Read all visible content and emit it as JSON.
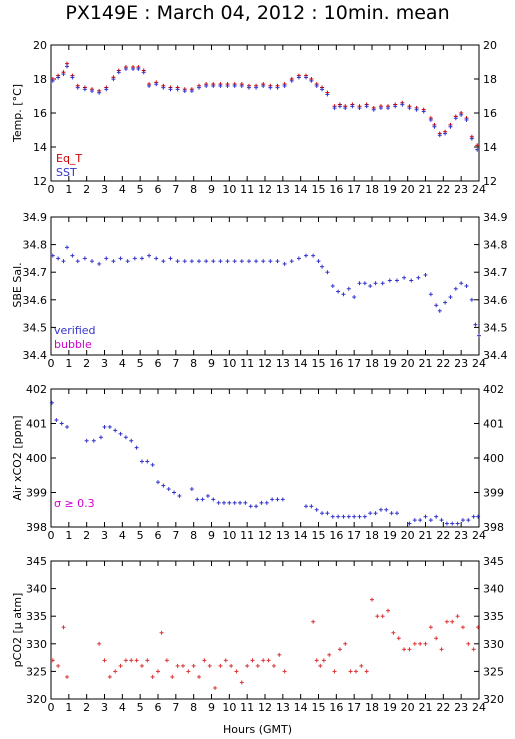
{
  "title": "PX149E : March 04, 2012 : 10min. mean",
  "xlabel": "Hours (GMT)",
  "colors": {
    "eq_t": "#cc0000",
    "sst": "#3333cc",
    "verified": "#3333cc",
    "bubble": "#cc00cc",
    "sigma": "#cc00cc",
    "pco2": "#dd3333"
  },
  "chart_data": [
    {
      "type": "scatter",
      "ylabel": "Temp. [°C]",
      "xlim": [
        0,
        24
      ],
      "ylim": [
        12,
        20
      ],
      "yticks": [
        12,
        14,
        16,
        18,
        20
      ],
      "xticks": [
        0,
        1,
        2,
        3,
        4,
        5,
        6,
        7,
        8,
        9,
        10,
        11,
        12,
        13,
        14,
        15,
        16,
        17,
        18,
        19,
        20,
        21,
        22,
        23,
        24
      ],
      "legend": [
        "Eq_T",
        "SST"
      ],
      "series": [
        {
          "name": "Eq_T",
          "x": [
            0.1,
            0.4,
            0.7,
            0.9,
            1.2,
            1.5,
            1.9,
            2.3,
            2.7,
            3.1,
            3.5,
            3.8,
            4.2,
            4.6,
            4.9,
            5.2,
            5.5,
            5.9,
            6.3,
            6.7,
            7.1,
            7.5,
            7.9,
            8.3,
            8.7,
            9.1,
            9.5,
            9.9,
            10.3,
            10.7,
            11.1,
            11.5,
            11.9,
            12.3,
            12.7,
            13.1,
            13.5,
            13.9,
            14.3,
            14.6,
            14.9,
            15.2,
            15.5,
            15.9,
            16.2,
            16.5,
            16.9,
            17.3,
            17.7,
            18.1,
            18.5,
            18.9,
            19.3,
            19.7,
            20.1,
            20.5,
            20.9,
            21.3,
            21.5,
            21.8,
            22.1,
            22.4,
            22.7,
            23.0,
            23.3,
            23.6,
            23.9
          ],
          "values": [
            18.0,
            18.2,
            18.4,
            18.9,
            18.2,
            17.6,
            17.5,
            17.4,
            17.3,
            17.5,
            18.1,
            18.5,
            18.7,
            18.7,
            18.7,
            18.5,
            17.7,
            17.8,
            17.6,
            17.5,
            17.5,
            17.4,
            17.4,
            17.6,
            17.7,
            17.7,
            17.7,
            17.7,
            17.7,
            17.7,
            17.6,
            17.6,
            17.7,
            17.6,
            17.6,
            17.7,
            18.0,
            18.2,
            18.2,
            18.0,
            17.7,
            17.5,
            17.2,
            16.4,
            16.5,
            16.4,
            16.5,
            16.4,
            16.5,
            16.3,
            16.4,
            16.4,
            16.5,
            16.6,
            16.4,
            16.3,
            16.2,
            15.7,
            15.3,
            14.8,
            14.9,
            15.3,
            15.8,
            16.0,
            15.7,
            14.6,
            14.1
          ]
        },
        {
          "name": "SST",
          "x": [
            0.1,
            0.4,
            0.7,
            0.9,
            1.2,
            1.5,
            1.9,
            2.3,
            2.7,
            3.1,
            3.5,
            3.8,
            4.2,
            4.6,
            4.9,
            5.2,
            5.5,
            5.9,
            6.3,
            6.7,
            7.1,
            7.5,
            7.9,
            8.3,
            8.7,
            9.1,
            9.5,
            9.9,
            10.3,
            10.7,
            11.1,
            11.5,
            11.9,
            12.3,
            12.7,
            13.1,
            13.5,
            13.9,
            14.3,
            14.6,
            14.9,
            15.2,
            15.5,
            15.9,
            16.2,
            16.5,
            16.9,
            17.3,
            17.7,
            18.1,
            18.5,
            18.9,
            19.3,
            19.7,
            20.1,
            20.5,
            20.9,
            21.3,
            21.5,
            21.8,
            22.1,
            22.4,
            22.7,
            23.0,
            23.3,
            23.6,
            23.9
          ],
          "values": [
            17.95,
            18.15,
            18.35,
            18.8,
            18.15,
            17.55,
            17.45,
            17.35,
            17.25,
            17.45,
            18.05,
            18.45,
            18.65,
            18.65,
            18.65,
            18.45,
            17.65,
            17.75,
            17.55,
            17.45,
            17.45,
            17.35,
            17.35,
            17.55,
            17.65,
            17.65,
            17.65,
            17.65,
            17.65,
            17.65,
            17.55,
            17.55,
            17.65,
            17.55,
            17.55,
            17.65,
            17.95,
            18.15,
            18.15,
            17.95,
            17.65,
            17.45,
            17.15,
            16.35,
            16.45,
            16.35,
            16.45,
            16.35,
            16.45,
            16.25,
            16.35,
            16.35,
            16.45,
            16.55,
            16.35,
            16.25,
            16.15,
            15.65,
            15.25,
            14.75,
            14.85,
            15.25,
            15.75,
            15.95,
            15.65,
            14.55,
            13.9
          ]
        }
      ]
    },
    {
      "type": "scatter",
      "ylabel": "SBE Sal.",
      "xlim": [
        0,
        24
      ],
      "ylim": [
        34.4,
        34.9
      ],
      "yticks": [
        34.4,
        34.5,
        34.6,
        34.7,
        34.8,
        34.9
      ],
      "xticks": [
        0,
        1,
        2,
        3,
        4,
        5,
        6,
        7,
        8,
        9,
        10,
        11,
        12,
        13,
        14,
        15,
        16,
        17,
        18,
        19,
        20,
        21,
        22,
        23,
        24
      ],
      "legend": [
        "verified",
        "bubble"
      ],
      "series": [
        {
          "name": "verified",
          "x": [
            0.1,
            0.4,
            0.7,
            0.9,
            1.2,
            1.5,
            1.9,
            2.3,
            2.7,
            3.1,
            3.5,
            3.9,
            4.3,
            4.7,
            5.1,
            5.5,
            5.9,
            6.3,
            6.7,
            7.1,
            7.5,
            7.9,
            8.3,
            8.7,
            9.1,
            9.5,
            9.9,
            10.3,
            10.7,
            11.1,
            11.5,
            11.9,
            12.3,
            12.7,
            13.1,
            13.5,
            13.9,
            14.3,
            14.7,
            15.0,
            15.2,
            15.5,
            15.8,
            16.1,
            16.4,
            16.7,
            17.0,
            17.3,
            17.6,
            17.9,
            18.2,
            18.6,
            19.0,
            19.4,
            19.8,
            20.2,
            20.6,
            21.0,
            21.3,
            21.6,
            21.8,
            22.1,
            22.4,
            22.7,
            23.0,
            23.3,
            23.6,
            23.8,
            24.0
          ],
          "values": [
            34.76,
            34.75,
            34.74,
            34.79,
            34.76,
            34.74,
            34.75,
            34.74,
            34.73,
            34.75,
            34.74,
            34.75,
            34.74,
            34.75,
            34.75,
            34.76,
            34.75,
            34.74,
            34.75,
            34.74,
            34.74,
            34.74,
            34.74,
            34.74,
            34.74,
            34.74,
            34.74,
            34.74,
            34.74,
            34.74,
            34.74,
            34.74,
            34.74,
            34.74,
            34.73,
            34.74,
            34.75,
            34.76,
            34.76,
            34.74,
            34.72,
            34.7,
            34.65,
            34.63,
            34.62,
            34.64,
            34.61,
            34.66,
            34.66,
            34.65,
            34.66,
            34.66,
            34.67,
            34.67,
            34.68,
            34.67,
            34.68,
            34.69,
            34.62,
            34.58,
            34.56,
            34.59,
            34.61,
            34.64,
            34.66,
            34.65,
            34.6,
            34.51,
            34.47
          ]
        }
      ]
    },
    {
      "type": "scatter",
      "ylabel": "Air xCO2 [ppm]",
      "xlim": [
        0,
        24
      ],
      "ylim": [
        398,
        402
      ],
      "yticks": [
        398,
        399,
        400,
        401,
        402
      ],
      "xticks": [
        0,
        1,
        2,
        3,
        4,
        5,
        6,
        7,
        8,
        9,
        10,
        11,
        12,
        13,
        14,
        15,
        16,
        17,
        18,
        19,
        20,
        21,
        22,
        23,
        24
      ],
      "annotation": "σ ≥ 0.3",
      "series": [
        {
          "name": "",
          "x": [
            0.05,
            0.3,
            0.6,
            0.9,
            2.0,
            2.4,
            2.8,
            3.0,
            3.3,
            3.6,
            3.9,
            4.2,
            4.5,
            4.8,
            5.1,
            5.4,
            5.7,
            6.0,
            6.3,
            6.6,
            6.9,
            7.2,
            7.9,
            8.2,
            8.5,
            8.8,
            9.1,
            9.4,
            9.7,
            10.0,
            10.3,
            10.6,
            10.9,
            11.2,
            11.5,
            11.8,
            12.1,
            12.4,
            12.7,
            13.0,
            14.3,
            14.6,
            14.9,
            15.2,
            15.5,
            15.8,
            16.1,
            16.4,
            16.7,
            17.0,
            17.3,
            17.6,
            17.9,
            18.2,
            18.5,
            18.8,
            19.1,
            19.4,
            20.1,
            20.4,
            20.7,
            21.0,
            21.3,
            21.6,
            21.9,
            22.2,
            22.5,
            22.8,
            23.1,
            23.4,
            23.7,
            23.95
          ],
          "values": [
            401.6,
            401.1,
            401.0,
            400.9,
            400.5,
            400.5,
            400.6,
            400.9,
            400.9,
            400.8,
            400.7,
            400.6,
            400.5,
            400.3,
            399.9,
            399.9,
            399.8,
            399.3,
            399.2,
            399.1,
            399.0,
            398.9,
            399.1,
            398.8,
            398.8,
            398.9,
            398.8,
            398.7,
            398.7,
            398.7,
            398.7,
            398.7,
            398.7,
            398.6,
            398.6,
            398.7,
            398.7,
            398.8,
            398.8,
            398.8,
            398.6,
            398.6,
            398.5,
            398.4,
            398.4,
            398.3,
            398.3,
            398.3,
            398.3,
            398.3,
            398.3,
            398.3,
            398.4,
            398.4,
            398.5,
            398.5,
            398.4,
            398.4,
            398.1,
            398.2,
            398.2,
            398.3,
            398.2,
            398.3,
            398.2,
            398.1,
            398.1,
            398.1,
            398.2,
            398.2,
            398.3,
            398.3
          ]
        }
      ]
    },
    {
      "type": "scatter",
      "ylabel": "pCO2 [µ atm]",
      "xlim": [
        0,
        24
      ],
      "ylim": [
        320,
        345
      ],
      "yticks": [
        320,
        325,
        330,
        335,
        340,
        345
      ],
      "xticks": [
        0,
        1,
        2,
        3,
        4,
        5,
        6,
        7,
        8,
        9,
        10,
        11,
        12,
        13,
        14,
        15,
        16,
        17,
        18,
        19,
        20,
        21,
        22,
        23,
        24
      ],
      "series": [
        {
          "name": "",
          "x": [
            0.1,
            0.4,
            0.7,
            0.9,
            2.7,
            3.0,
            3.3,
            3.6,
            3.9,
            4.2,
            4.5,
            4.8,
            5.1,
            5.4,
            5.7,
            6.0,
            6.2,
            6.5,
            6.8,
            7.1,
            7.4,
            7.7,
            8.0,
            8.3,
            8.6,
            8.9,
            9.2,
            9.5,
            9.8,
            10.1,
            10.4,
            10.7,
            11.0,
            11.3,
            11.6,
            11.9,
            12.2,
            12.5,
            12.8,
            13.1,
            14.7,
            14.9,
            15.1,
            15.3,
            15.6,
            15.9,
            16.2,
            16.5,
            16.8,
            17.1,
            17.4,
            17.7,
            18.0,
            18.3,
            18.6,
            18.9,
            19.2,
            19.5,
            19.8,
            20.1,
            20.4,
            20.7,
            21.0,
            21.3,
            21.6,
            21.9,
            22.2,
            22.5,
            22.8,
            23.1,
            23.4,
            23.7,
            23.95
          ],
          "values": [
            327,
            326,
            333,
            324,
            330,
            327,
            324,
            325,
            326,
            327,
            327,
            327,
            326,
            327,
            324,
            325,
            332,
            327,
            324,
            326,
            326,
            325,
            326,
            324,
            327,
            326,
            322,
            326,
            327,
            326,
            325,
            323,
            326,
            327,
            326,
            327,
            327,
            326,
            328,
            325,
            334,
            327,
            326,
            327,
            328,
            325,
            329,
            330,
            325,
            325,
            326,
            325,
            338,
            335,
            335,
            336,
            332,
            331,
            329,
            329,
            330,
            330,
            330,
            333,
            331,
            329,
            334,
            334,
            335,
            333,
            330,
            329,
            333
          ]
        }
      ]
    }
  ]
}
